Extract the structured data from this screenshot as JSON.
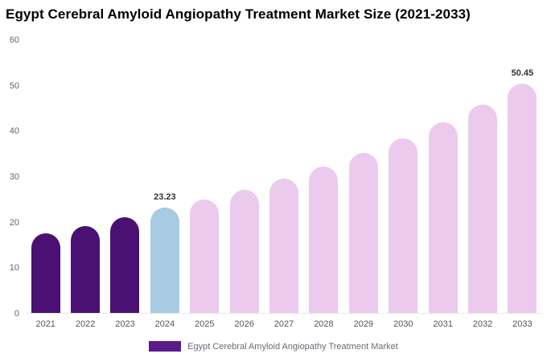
{
  "title": "Egypt Cerebral Amyloid Angiopathy Treatment Market Size (2021-2033)",
  "legend": {
    "label": "Egypt Cerebral Amyloid Angiopathy Treatment Market",
    "swatch_color": "#5b1a8a"
  },
  "colors": {
    "dark_purple": "#4a1173",
    "light_blue": "#a6cbe3",
    "light_pink": "#ebcaed",
    "axis_text": "#666666"
  },
  "chart_data": {
    "type": "bar",
    "title": "Egypt Cerebral Amyloid Angiopathy Treatment Market Size (2021-2033)",
    "categories": [
      "2021",
      "2022",
      "2023",
      "2024",
      "2025",
      "2026",
      "2027",
      "2028",
      "2029",
      "2030",
      "2031",
      "2032",
      "2033"
    ],
    "values": [
      17.5,
      19.2,
      21.0,
      23.23,
      24.9,
      27.0,
      29.5,
      32.2,
      35.2,
      38.4,
      42.0,
      45.9,
      50.45
    ],
    "bar_colors": [
      "#4a1173",
      "#4a1173",
      "#4a1173",
      "#a6cbe3",
      "#ebcaed",
      "#ebcaed",
      "#ebcaed",
      "#ebcaed",
      "#ebcaed",
      "#ebcaed",
      "#ebcaed",
      "#ebcaed",
      "#ebcaed"
    ],
    "annotations": [
      {
        "index": 3,
        "text": "23.23"
      },
      {
        "index": 12,
        "text": "50.45"
      }
    ],
    "xlabel": "",
    "ylabel": "",
    "ylim": [
      0,
      60
    ],
    "yticks": [
      0,
      10,
      20,
      30,
      40,
      50,
      60
    ],
    "grid": false,
    "legend_position": "bottom"
  }
}
